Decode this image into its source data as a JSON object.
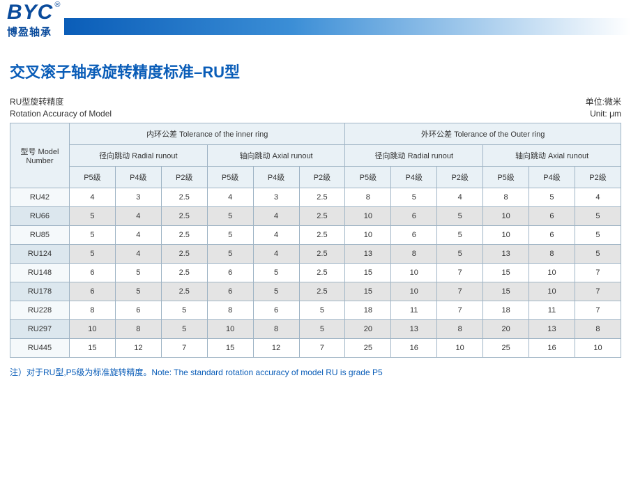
{
  "logo": {
    "en": "BYC",
    "reg": "®",
    "cn": "博盈轴承"
  },
  "title": "交叉滚子轴承旋转精度标准–RU型",
  "subhead": {
    "left_cn": "RU型旋转精度",
    "left_en": "Rotation Accuracy of Model",
    "right_cn": "单位:微米",
    "right_en": "Unit: μm"
  },
  "table": {
    "header_model": "型号 Model Number",
    "header_inner": "内环公差 Tolerance of the inner ring",
    "header_outer": "外环公差 Tolerance of the Outer ring",
    "header_radial": "径向跳动 Radial runout",
    "header_axial": "轴向跳动 Axial runout",
    "grades": [
      "P5级",
      "P4级",
      "P2级"
    ],
    "rows": [
      {
        "model": "RU42",
        "v": [
          "4",
          "3",
          "2.5",
          "4",
          "3",
          "2.5",
          "8",
          "5",
          "4",
          "8",
          "5",
          "4"
        ]
      },
      {
        "model": "RU66",
        "v": [
          "5",
          "4",
          "2.5",
          "5",
          "4",
          "2.5",
          "10",
          "6",
          "5",
          "10",
          "6",
          "5"
        ]
      },
      {
        "model": "RU85",
        "v": [
          "5",
          "4",
          "2.5",
          "5",
          "4",
          "2.5",
          "10",
          "6",
          "5",
          "10",
          "6",
          "5"
        ]
      },
      {
        "model": "RU124",
        "v": [
          "5",
          "4",
          "2.5",
          "5",
          "4",
          "2.5",
          "13",
          "8",
          "5",
          "13",
          "8",
          "5"
        ]
      },
      {
        "model": "RU148",
        "v": [
          "6",
          "5",
          "2.5",
          "6",
          "5",
          "2.5",
          "15",
          "10",
          "7",
          "15",
          "10",
          "7"
        ]
      },
      {
        "model": "RU178",
        "v": [
          "6",
          "5",
          "2.5",
          "6",
          "5",
          "2.5",
          "15",
          "10",
          "7",
          "15",
          "10",
          "7"
        ]
      },
      {
        "model": "RU228",
        "v": [
          "8",
          "6",
          "5",
          "8",
          "6",
          "5",
          "18",
          "11",
          "7",
          "18",
          "11",
          "7"
        ]
      },
      {
        "model": "RU297",
        "v": [
          "10",
          "8",
          "5",
          "10",
          "8",
          "5",
          "20",
          "13",
          "8",
          "20",
          "13",
          "8"
        ]
      },
      {
        "model": "RU445",
        "v": [
          "15",
          "12",
          "7",
          "15",
          "12",
          "7",
          "25",
          "16",
          "10",
          "25",
          "16",
          "10"
        ]
      }
    ]
  },
  "footnote": "注）对于RU型,P5级为标准旋转精度。Note: The standard rotation accuracy of model RU is grade P5",
  "colors": {
    "brand_blue": "#0a5db8",
    "border": "#9fb4c5",
    "head_bg": "#e9f1f6",
    "alt_bg": "#e4e4e4"
  }
}
